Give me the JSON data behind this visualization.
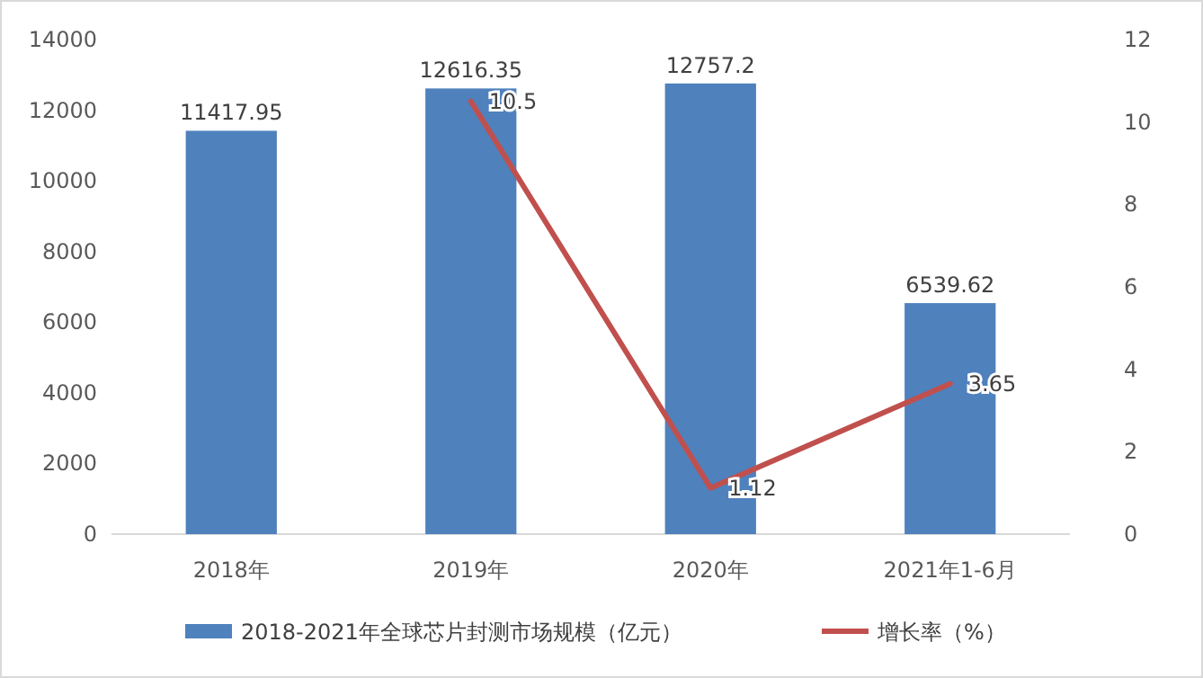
{
  "chart_data": {
    "type": "bar",
    "categories": [
      "2018年",
      "2019年",
      "2020年",
      "2021年1-6月"
    ],
    "series": [
      {
        "name": "2018-2021年全球芯片封测市场规模（亿元）",
        "color": "#4f81bd",
        "values": [
          11417.95,
          12616.35,
          12757.2,
          6539.62
        ]
      },
      {
        "name": "增长率（%）",
        "type": "line",
        "axis": "y2",
        "color": "#c0504d",
        "values": [
          null,
          10.5,
          1.12,
          3.65
        ]
      }
    ],
    "ylim": [
      0,
      14000
    ],
    "yticks": [
      0,
      2000,
      4000,
      6000,
      8000,
      10000,
      12000,
      14000
    ],
    "y2lim": [
      0,
      12
    ],
    "y2ticks": [
      0,
      2,
      4,
      6,
      8,
      10,
      12
    ],
    "data_labels": true,
    "legend": "bottom",
    "grid": false,
    "marker": "none",
    "line_style": "solid"
  }
}
